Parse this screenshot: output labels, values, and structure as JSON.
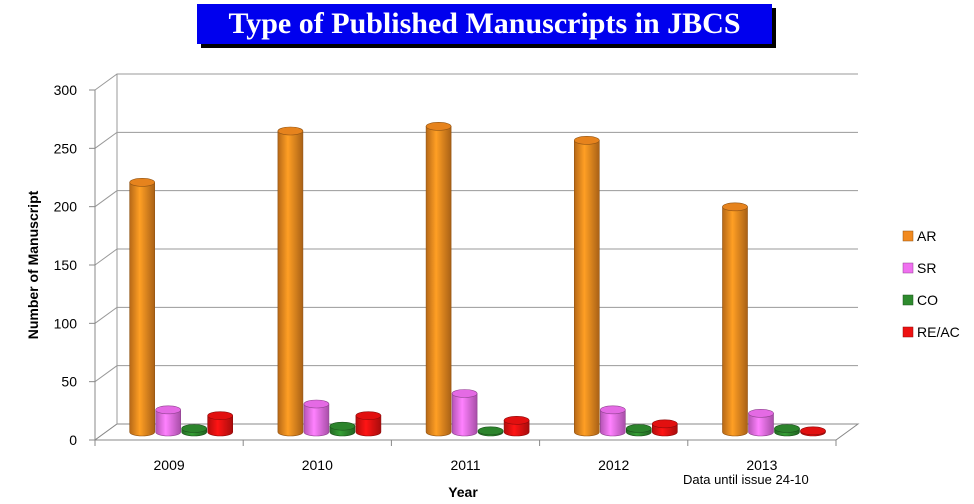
{
  "chart_data": {
    "type": "bar",
    "title": "Type of Published Manuscripts in JBCS",
    "xlabel": "Year",
    "ylabel": "Number of Manuscript",
    "ylim": [
      0,
      300
    ],
    "yticks": [
      0,
      50,
      100,
      150,
      200,
      250,
      300
    ],
    "categories": [
      "2009",
      "2010",
      "2011",
      "2012",
      "2013"
    ],
    "series": [
      {
        "name": "AR",
        "color": "#f28a1f",
        "values": [
          214,
          258,
          262,
          250,
          193
        ]
      },
      {
        "name": "SR",
        "color": "#f070f0",
        "values": [
          19,
          24,
          33,
          19,
          16
        ]
      },
      {
        "name": "CO",
        "color": "#2e8b2e",
        "values": [
          3,
          5,
          1,
          3,
          3
        ]
      },
      {
        "name": "RE/AC",
        "color": "#ee1111",
        "values": [
          14,
          14,
          10,
          7,
          1
        ]
      }
    ],
    "grid": true,
    "legend_position": "right",
    "note": "Data until issue 24-10"
  }
}
